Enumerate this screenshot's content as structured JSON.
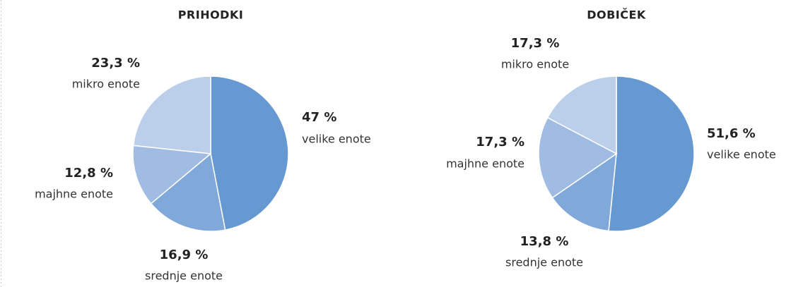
{
  "chart_data": [
    {
      "type": "pie",
      "title": "PRIHODKI",
      "categories": [
        "velike enote",
        "srednje enote",
        "majhne enote",
        "mikro enote"
      ],
      "values": [
        47,
        16.9,
        12.8,
        23.3
      ],
      "value_labels": [
        "47 %",
        "16,9 %",
        "12,8 %",
        "23,3 %"
      ],
      "colors": [
        "#6699d1",
        "#80a8d8",
        "#a0bce2",
        "#bccfea"
      ]
    },
    {
      "type": "pie",
      "title": "DOBIČEK",
      "categories": [
        "velike enote",
        "srednje enote",
        "majhne enote",
        "mikro enote"
      ],
      "values": [
        51.6,
        13.8,
        17.3,
        17.3
      ],
      "value_labels": [
        "51,6 %",
        "13,8 %",
        "17,3 %",
        "17,3 %"
      ],
      "colors": [
        "#6699d1",
        "#80a8d8",
        "#a0bce2",
        "#bccfea"
      ]
    }
  ]
}
